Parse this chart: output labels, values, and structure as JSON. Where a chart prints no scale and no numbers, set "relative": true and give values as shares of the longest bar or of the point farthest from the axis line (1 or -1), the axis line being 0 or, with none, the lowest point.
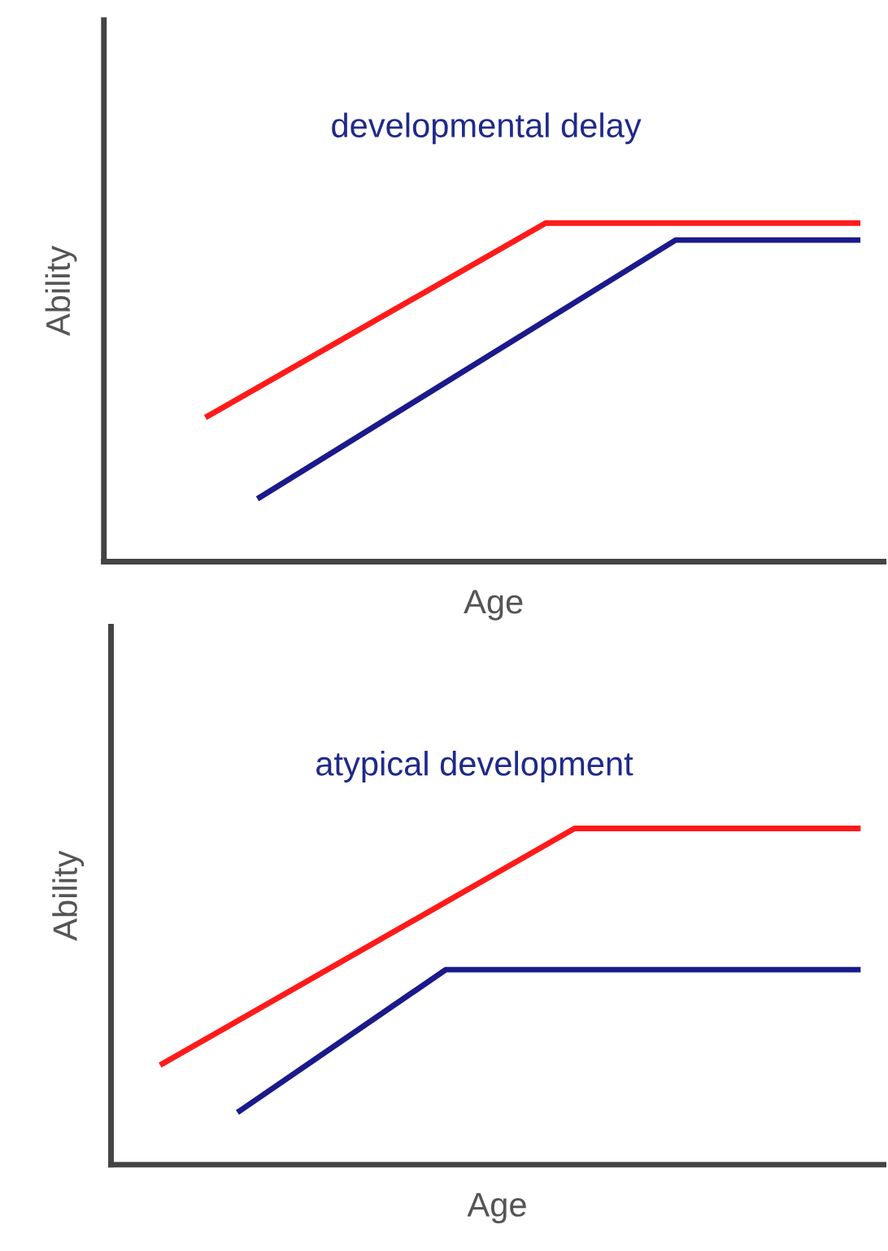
{
  "chart_data": [
    {
      "type": "line",
      "title": "developmental delay",
      "xlabel": "Age",
      "ylabel": "Ability",
      "relative": true,
      "tick_labels": false,
      "grid": false,
      "legend": false,
      "marker": "none",
      "line_style": "solid",
      "categories": [
        null,
        null,
        null,
        null,
        null,
        null,
        null,
        null,
        null,
        null,
        null,
        null,
        null,
        null,
        null,
        null,
        null,
        null,
        null,
        null,
        null,
        null,
        null,
        null,
        null,
        null,
        null,
        null,
        null,
        null,
        null
      ],
      "series": [
        {
          "color": "#ff1a1a",
          "values": [
            null,
            null,
            null,
            null,
            0.43,
            null,
            null,
            null,
            null,
            null,
            null,
            null,
            null,
            null,
            null,
            null,
            null,
            1,
            null,
            null,
            null,
            null,
            null,
            null,
            null,
            null,
            null,
            null,
            null,
            1,
            null
          ]
        },
        {
          "color": "#1a1a8c",
          "values": [
            null,
            null,
            null,
            null,
            null,
            null,
            0.19,
            null,
            null,
            null,
            null,
            null,
            null,
            null,
            null,
            null,
            null,
            null,
            null,
            null,
            null,
            null,
            0.95,
            null,
            null,
            null,
            null,
            null,
            null,
            0.95,
            null
          ]
        }
      ]
    },
    {
      "type": "line",
      "title": "atypical development",
      "xlabel": "Age",
      "ylabel": "Ability",
      "relative": true,
      "tick_labels": false,
      "grid": false,
      "legend": false,
      "marker": "none",
      "line_style": "solid",
      "categories": [
        null,
        null,
        null,
        null,
        null,
        null,
        null,
        null,
        null,
        null,
        null,
        null,
        null,
        null,
        null,
        null,
        null,
        null,
        null,
        null,
        null,
        null,
        null,
        null,
        null,
        null,
        null,
        null,
        null,
        null,
        null
      ],
      "series": [
        {
          "color": "#ff1a1a",
          "values": [
            null,
            null,
            0.3,
            null,
            null,
            null,
            null,
            null,
            null,
            null,
            null,
            null,
            null,
            null,
            null,
            null,
            null,
            null,
            1,
            null,
            null,
            null,
            null,
            null,
            null,
            null,
            null,
            null,
            null,
            1,
            null
          ]
        },
        {
          "color": "#1a1a8c",
          "values": [
            null,
            null,
            null,
            null,
            null,
            0.16,
            null,
            null,
            null,
            null,
            null,
            null,
            null,
            0.58,
            null,
            null,
            null,
            null,
            null,
            null,
            null,
            null,
            null,
            null,
            null,
            null,
            null,
            null,
            null,
            0.58,
            null
          ]
        }
      ]
    }
  ]
}
